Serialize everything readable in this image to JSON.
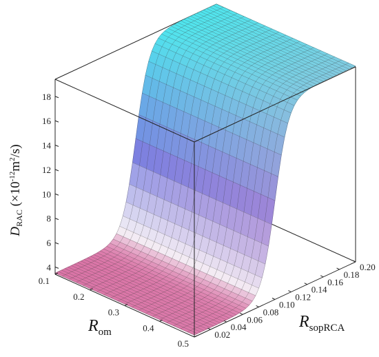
{
  "chart_data": {
    "type": "surface",
    "title": "",
    "zlabel": {
      "main": "D",
      "sub": "RAC",
      "unit_open": " (×10",
      "unit_exp": "-12",
      "unit_mid": "m",
      "unit_exp2": "2",
      "unit_close": "/s)"
    },
    "xlabel": {
      "main": "R",
      "sub": "om"
    },
    "ylabel": {
      "main": "R",
      "sub": "sopRCA"
    },
    "x_range": [
      0.1,
      0.5
    ],
    "y_range": [
      0.0,
      0.2
    ],
    "z_range": [
      3.4,
      19.4
    ],
    "x_ticks": [
      "0.1",
      "0.2",
      "0.3",
      "0.4",
      "0.5"
    ],
    "y_ticks": [
      "0.02",
      "0.04",
      "0.06",
      "0.08",
      "0.10",
      "0.12",
      "0.14",
      "0.16",
      "0.18",
      "0.20"
    ],
    "z_ticks": [
      "4",
      "6",
      "8",
      "10",
      "12",
      "14",
      "16",
      "18"
    ],
    "surface_description": "sigmoidal rise in y near 0.09–0.11, plateau ~19.4 at high y, ~3.5 at low y",
    "z_low": 3.5,
    "z_high": 19.4,
    "transition_center_y": 0.1,
    "colors": {
      "low": "#d86aa0",
      "mid": "#7a7fe0",
      "high": "#4fe6ee"
    },
    "grid": false,
    "legend": "none"
  }
}
